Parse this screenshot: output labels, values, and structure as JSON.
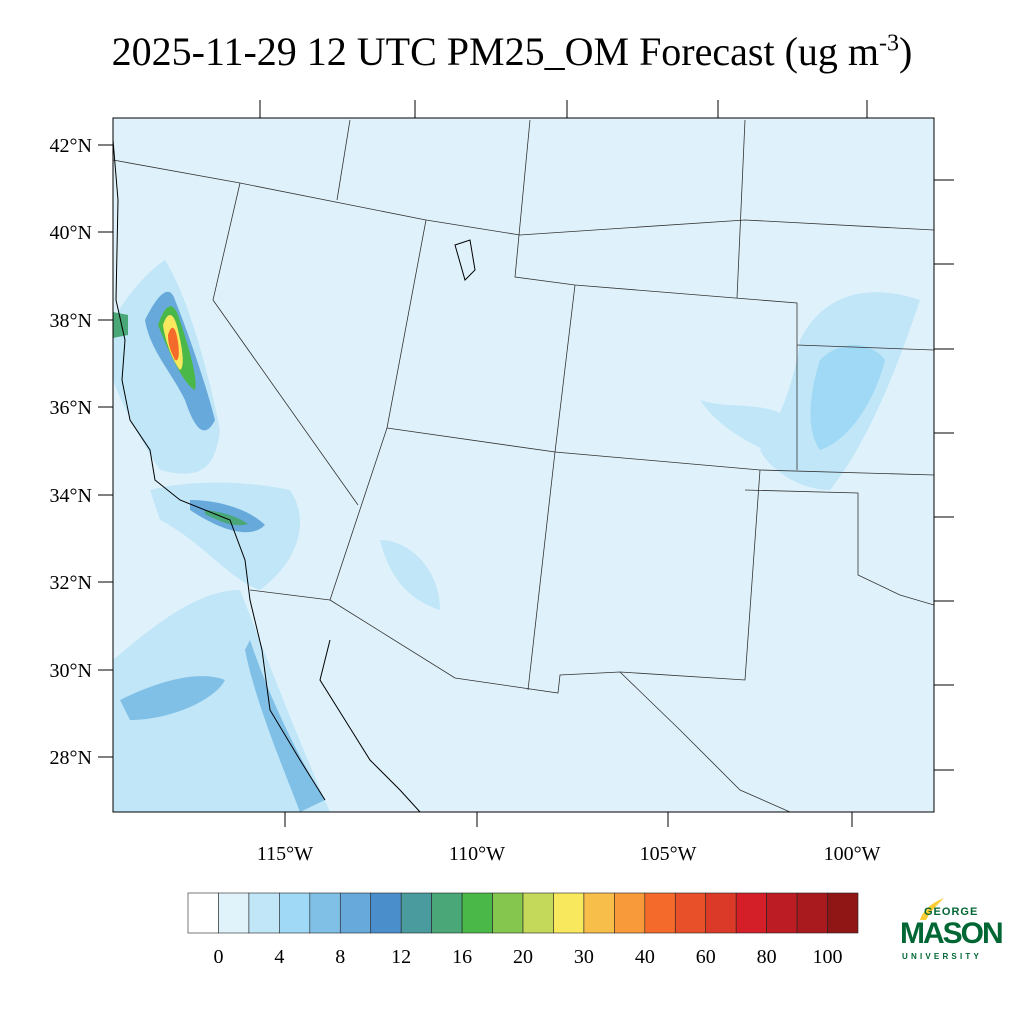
{
  "title": {
    "main": "2025-11-29 12 UTC PM25_OM Forecast (ug m",
    "superscript": "-3",
    "close": ")"
  },
  "map": {
    "variable": "PM25_OM",
    "units": "ug m-3",
    "lat_labels": [
      "42°N",
      "40°N",
      "38°N",
      "36°N",
      "34°N",
      "32°N",
      "30°N",
      "28°N"
    ],
    "lon_labels": [
      "115°W",
      "110°W",
      "105°W",
      "100°W"
    ],
    "background_color": "#dff2fb"
  },
  "colorbar": {
    "colors": [
      "#ffffff",
      "#e0f3fb",
      "#c0e6f8",
      "#a0d9f5",
      "#80bfe6",
      "#68a9dc",
      "#4a8fcc",
      "#4a9b9e",
      "#4aa878",
      "#4ab848",
      "#85c64f",
      "#c4d85a",
      "#f8e85e",
      "#f8be4a",
      "#f89a3a",
      "#f46a2a",
      "#e8502a",
      "#dc3a28",
      "#d41f28",
      "#bc1c24",
      "#a81a1e",
      "#901616"
    ],
    "labels": [
      "0",
      "4",
      "8",
      "12",
      "16",
      "20",
      "30",
      "40",
      "60",
      "80",
      "100"
    ]
  },
  "logo": {
    "line1": "GEORGE",
    "line2": "MASON",
    "line3": "UNIVERSITY",
    "color": "#006633",
    "accent": "#ffcc33"
  }
}
